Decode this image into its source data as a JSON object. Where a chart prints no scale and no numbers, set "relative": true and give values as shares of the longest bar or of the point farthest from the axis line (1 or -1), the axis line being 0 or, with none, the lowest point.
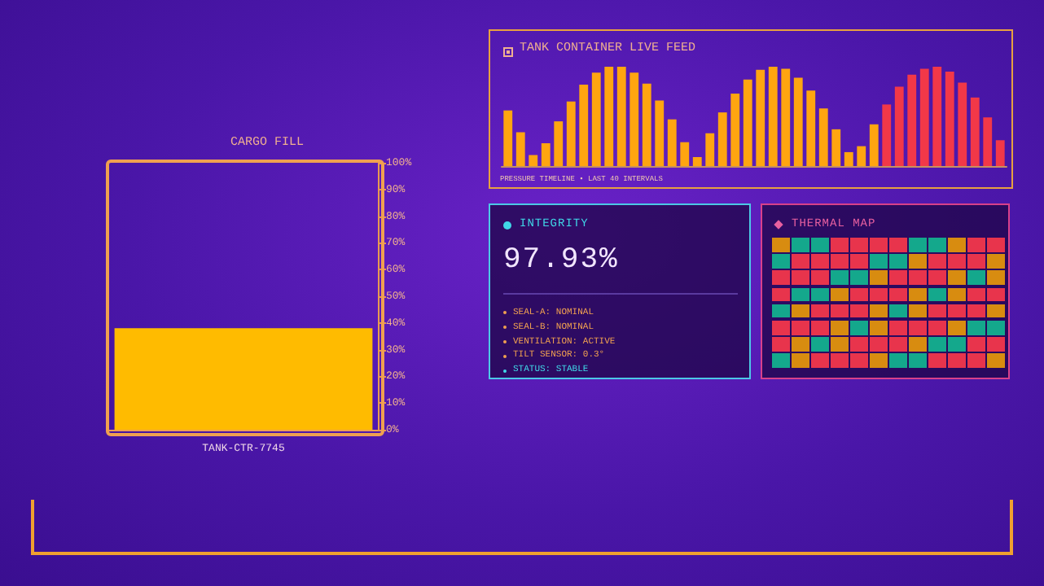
{
  "chart_data": [
    {
      "type": "bar",
      "title": "CARGO FILL",
      "categories": [
        "TANK-CTR-7745"
      ],
      "values": [
        38
      ],
      "color": "#ffbb00",
      "ylim": [
        0,
        100
      ],
      "yticks": [
        {
          "value": 0,
          "label": "0%"
        },
        {
          "value": 10,
          "label": "10%"
        },
        {
          "value": 20,
          "label": "20%"
        },
        {
          "value": 30,
          "label": "30%"
        },
        {
          "value": 40,
          "label": "40%"
        },
        {
          "value": 50,
          "label": "50%"
        },
        {
          "value": 60,
          "label": "60%"
        },
        {
          "value": 70,
          "label": "70%"
        },
        {
          "value": 80,
          "label": "80%"
        },
        {
          "value": 90,
          "label": "90%"
        },
        {
          "value": 100,
          "label": "100%"
        }
      ]
    },
    {
      "type": "bar",
      "title": "TANK CONTAINER LIVE FEED",
      "relative": true,
      "categories": [
        null,
        null,
        null,
        null,
        null,
        null,
        null,
        null,
        null,
        null,
        null,
        null,
        null,
        null,
        null,
        null,
        null,
        null,
        null,
        null,
        null,
        null,
        null,
        null,
        null,
        null,
        null,
        null,
        null,
        null,
        null,
        null,
        null,
        null,
        null,
        null,
        null,
        null,
        null,
        null
      ],
      "values": [
        0.56,
        0.34,
        0.11,
        0.23,
        0.45,
        0.65,
        0.82,
        0.94,
        1,
        1,
        0.94,
        0.83,
        0.66,
        0.47,
        0.24,
        0.09,
        0.33,
        0.54,
        0.73,
        0.87,
        0.97,
        1,
        0.98,
        0.89,
        0.76,
        0.58,
        0.37,
        0.14,
        0.2,
        0.42,
        0.62,
        0.8,
        0.92,
        0.98,
        1,
        0.95,
        0.84,
        0.69,
        0.49,
        0.26
      ],
      "colors": [
        "#ffa510",
        "#ffa510",
        "#ffa510",
        "#ffa510",
        "#ffa510",
        "#ffa510",
        "#ffa510",
        "#ffa510",
        "#ffa510",
        "#ffa510",
        "#ffa510",
        "#ffa510",
        "#ffa510",
        "#ffa510",
        "#ffa510",
        "#ffa510",
        "#ffa510",
        "#ffa510",
        "#ffa510",
        "#ffa510",
        "#ffa510",
        "#ffa510",
        "#ffa510",
        "#ffa510",
        "#ffa510",
        "#ffa510",
        "#ffa510",
        "#ffa510",
        "#ffa510",
        "#ffa510",
        "#f23848",
        "#f23848",
        "#f23848",
        "#f23848",
        "#f23848",
        "#f23848",
        "#f23848",
        "#f23848",
        "#f23848",
        "#f23848"
      ],
      "annotations": [
        "PRESSURE TIMELINE • LAST 40 INTERVALS"
      ]
    },
    {
      "type": "other",
      "title": "INTEGRITY",
      "annotations": [
        "97.93%",
        "SEAL-A: NOMINAL",
        "SEAL-B: NOMINAL",
        "VENTILATION: ACTIVE",
        "TILT SENSOR: 0.3°",
        "STATUS: STABLE"
      ]
    },
    {
      "type": "other",
      "title": "THERMAL MAP"
    }
  ]
}
